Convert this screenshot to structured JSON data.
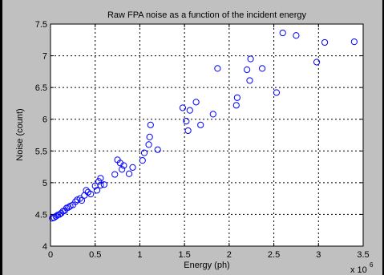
{
  "chart_data": {
    "type": "scatter",
    "title": "Raw FPA noise as a function of the incident energy",
    "xlabel": "Energy (ph)",
    "ylabel": "Noise (count)",
    "x_multiplier_label": "x 10",
    "x_multiplier_exponent": "6",
    "xlim": [
      0,
      3.5
    ],
    "ylim": [
      4,
      7.5
    ],
    "xticks": [
      "0",
      "0.5",
      "1",
      "1.5",
      "2",
      "2.5",
      "3",
      "3.5"
    ],
    "yticks": [
      "4",
      "4.5",
      "5",
      "5.5",
      "6",
      "6.5",
      "7",
      "7.5"
    ],
    "grid": true,
    "marker": "circle",
    "color": "#0000ff",
    "points": [
      [
        0.02,
        4.44
      ],
      [
        0.04,
        4.45
      ],
      [
        0.06,
        4.47
      ],
      [
        0.08,
        4.49
      ],
      [
        0.1,
        4.5
      ],
      [
        0.12,
        4.52
      ],
      [
        0.14,
        4.55
      ],
      [
        0.16,
        4.56
      ],
      [
        0.18,
        4.6
      ],
      [
        0.2,
        4.61
      ],
      [
        0.22,
        4.63
      ],
      [
        0.25,
        4.65
      ],
      [
        0.28,
        4.7
      ],
      [
        0.3,
        4.73
      ],
      [
        0.33,
        4.75
      ],
      [
        0.35,
        4.72
      ],
      [
        0.38,
        4.8
      ],
      [
        0.4,
        4.88
      ],
      [
        0.42,
        4.85
      ],
      [
        0.45,
        4.82
      ],
      [
        0.5,
        4.95
      ],
      [
        0.52,
        4.88
      ],
      [
        0.54,
        5.02
      ],
      [
        0.56,
        4.96
      ],
      [
        0.56,
        5.07
      ],
      [
        0.6,
        4.97
      ],
      [
        0.72,
        5.13
      ],
      [
        0.75,
        5.36
      ],
      [
        0.78,
        5.31
      ],
      [
        0.8,
        5.21
      ],
      [
        0.82,
        5.27
      ],
      [
        0.88,
        5.14
      ],
      [
        0.92,
        5.24
      ],
      [
        1.03,
        5.35
      ],
      [
        1.05,
        5.47
      ],
      [
        1.1,
        5.6
      ],
      [
        1.11,
        5.72
      ],
      [
        1.12,
        5.91
      ],
      [
        1.2,
        5.52
      ],
      [
        1.48,
        6.18
      ],
      [
        1.52,
        5.97
      ],
      [
        1.54,
        5.82
      ],
      [
        1.56,
        6.14
      ],
      [
        1.63,
        6.27
      ],
      [
        1.68,
        5.91
      ],
      [
        1.82,
        6.08
      ],
      [
        1.87,
        6.8
      ],
      [
        2.08,
        6.22
      ],
      [
        2.09,
        6.34
      ],
      [
        2.2,
        6.78
      ],
      [
        2.23,
        6.61
      ],
      [
        2.24,
        6.95
      ],
      [
        2.37,
        6.8
      ],
      [
        2.53,
        6.42
      ],
      [
        2.6,
        7.36
      ],
      [
        2.75,
        7.32
      ],
      [
        2.98,
        6.9
      ],
      [
        3.07,
        7.21
      ],
      [
        3.4,
        7.22
      ]
    ]
  }
}
